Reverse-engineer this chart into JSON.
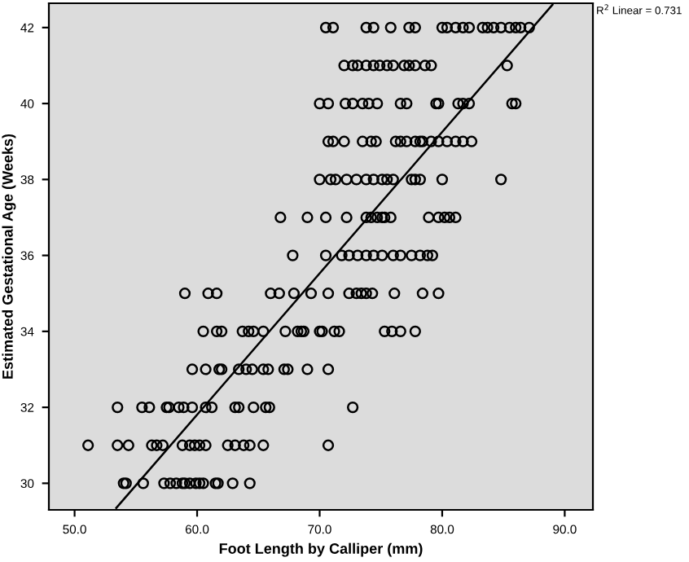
{
  "chart_data": {
    "type": "scatter",
    "xlabel": "Foot Length by Calliper (mm)",
    "ylabel": "Estimated Gestational Age (Weeks)",
    "annotations": [
      "R$^{2}$ Linear = 0.731"
    ],
    "xlim": [
      47.9,
      92.3
    ],
    "ylim": [
      29.3,
      42.64
    ],
    "xticks": [
      {
        "value": 50,
        "label": "50.0"
      },
      {
        "value": 60,
        "label": "60.0"
      },
      {
        "value": 70,
        "label": "70.0"
      },
      {
        "value": 80,
        "label": "80.0"
      },
      {
        "value": 90,
        "label": "90.0"
      }
    ],
    "yticks": [
      30,
      32,
      34,
      36,
      38,
      40,
      42
    ],
    "grid": false,
    "legend": false,
    "marker": "circle",
    "series": [
      {
        "color": "#000000",
        "x": [
          54.0,
          54.2,
          55.6,
          57.3,
          57.8,
          58.3,
          58.8,
          59.0,
          59.4,
          59.9,
          60.2,
          60.5,
          61.5,
          61.7,
          62.9,
          64.3,
          51.1,
          53.5,
          54.4,
          56.3,
          56.7,
          57.2,
          58.8,
          59.4,
          59.8,
          60.2,
          60.7,
          62.5,
          63.1,
          63.8,
          64.3,
          65.4,
          70.7,
          53.5,
          55.5,
          56.1,
          57.5,
          57.7,
          58.5,
          58.9,
          59.6,
          60.7,
          61.2,
          63.1,
          63.4,
          64.6,
          65.6,
          65.9,
          72.7,
          59.6,
          60.7,
          61.8,
          62.0,
          63.4,
          64.0,
          64.5,
          65.4,
          65.8,
          67.1,
          67.4,
          69.0,
          70.7,
          60.5,
          61.6,
          62.0,
          63.7,
          64.2,
          64.6,
          65.4,
          67.2,
          68.2,
          68.5,
          68.7,
          70.0,
          70.2,
          71.2,
          71.6,
          75.3,
          75.9,
          76.6,
          77.8,
          59.0,
          60.9,
          61.6,
          66.0,
          66.7,
          67.9,
          69.3,
          70.7,
          72.4,
          73.0,
          73.4,
          73.8,
          74.3,
          76.1,
          78.4,
          79.7,
          67.8,
          70.5,
          71.8,
          72.4,
          73.1,
          73.8,
          74.4,
          75.1,
          76.0,
          76.6,
          77.5,
          78.2,
          78.8,
          79.2,
          66.8,
          69.0,
          70.5,
          72.2,
          73.8,
          74.2,
          74.7,
          75.1,
          75.3,
          75.8,
          78.9,
          79.7,
          80.2,
          80.6,
          81.1,
          70.0,
          70.9,
          71.3,
          72.2,
          73.0,
          73.8,
          74.4,
          75.1,
          75.5,
          76.0,
          77.5,
          77.8,
          78.2,
          80.0,
          84.8,
          70.7,
          71.1,
          72.0,
          73.5,
          74.2,
          74.6,
          76.2,
          76.6,
          77.1,
          77.8,
          78.2,
          78.4,
          79.1,
          79.7,
          80.4,
          81.1,
          81.7,
          82.4,
          70.0,
          70.7,
          72.1,
          72.7,
          73.5,
          74.0,
          74.7,
          76.6,
          77.1,
          79.5,
          79.7,
          81.3,
          81.7,
          82.2,
          85.7,
          86.0,
          72.0,
          72.7,
          73.1,
          73.8,
          74.4,
          74.9,
          75.5,
          76.0,
          76.9,
          77.3,
          77.8,
          78.6,
          79.1,
          85.3,
          70.5,
          71.1,
          73.8,
          74.4,
          75.8,
          77.3,
          77.8,
          80.0,
          80.4,
          81.1,
          81.7,
          82.2,
          83.3,
          83.7,
          84.2,
          84.8,
          85.5,
          86.0,
          86.4,
          87.1
        ],
        "values": [
          30,
          30,
          30,
          30,
          30,
          30,
          30,
          30,
          30,
          30,
          30,
          30,
          30,
          30,
          30,
          30,
          31,
          31,
          31,
          31,
          31,
          31,
          31,
          31,
          31,
          31,
          31,
          31,
          31,
          31,
          31,
          31,
          31,
          32,
          32,
          32,
          32,
          32,
          32,
          32,
          32,
          32,
          32,
          32,
          32,
          32,
          32,
          32,
          32,
          33,
          33,
          33,
          33,
          33,
          33,
          33,
          33,
          33,
          33,
          33,
          33,
          33,
          34,
          34,
          34,
          34,
          34,
          34,
          34,
          34,
          34,
          34,
          34,
          34,
          34,
          34,
          34,
          34,
          34,
          34,
          34,
          35,
          35,
          35,
          35,
          35,
          35,
          35,
          35,
          35,
          35,
          35,
          35,
          35,
          35,
          35,
          35,
          36,
          36,
          36,
          36,
          36,
          36,
          36,
          36,
          36,
          36,
          36,
          36,
          36,
          36,
          37,
          37,
          37,
          37,
          37,
          37,
          37,
          37,
          37,
          37,
          37,
          37,
          37,
          37,
          37,
          38,
          38,
          38,
          38,
          38,
          38,
          38,
          38,
          38,
          38,
          38,
          38,
          38,
          38,
          38,
          39,
          39,
          39,
          39,
          39,
          39,
          39,
          39,
          39,
          39,
          39,
          39,
          39,
          39,
          39,
          39,
          39,
          39,
          40,
          40,
          40,
          40,
          40,
          40,
          40,
          40,
          40,
          40,
          40,
          40,
          40,
          40,
          40,
          40,
          41,
          41,
          41,
          41,
          41,
          41,
          41,
          41,
          41,
          41,
          41,
          41,
          41,
          41,
          42,
          42,
          42,
          42,
          42,
          42,
          42,
          42,
          42,
          42,
          42,
          42,
          42,
          42,
          42,
          42,
          42,
          42,
          42,
          42
        ]
      },
      {
        "type": "line",
        "marker": "none",
        "color": "#000000",
        "x": [
          53.4,
          89.0
        ],
        "values": [
          29.35,
          42.6
        ]
      }
    ]
  }
}
